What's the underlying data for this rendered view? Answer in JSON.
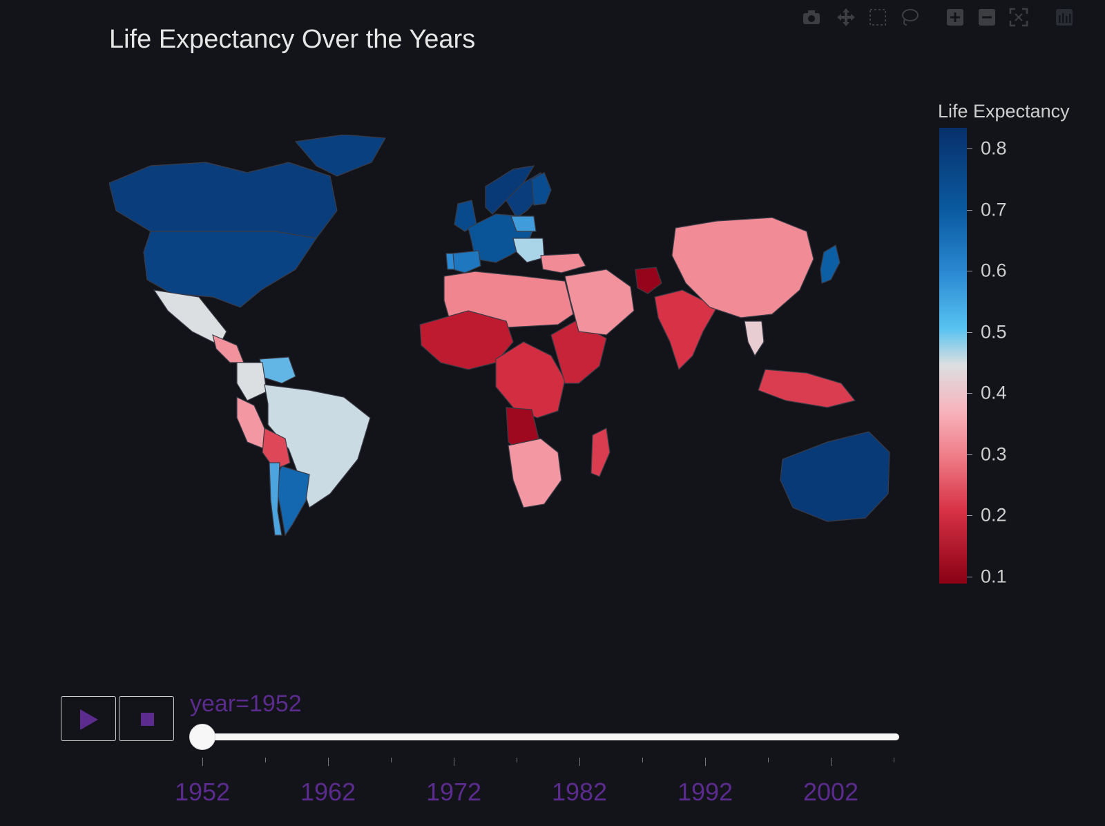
{
  "title": "Life Expectancy Over the Years",
  "modebar": {
    "icons": [
      "camera-icon",
      "pan-icon",
      "box-select-icon",
      "lasso-icon",
      "zoom-in-icon",
      "zoom-out-icon",
      "autoscale-icon",
      "plotly-logo-icon"
    ]
  },
  "colorbar": {
    "title": "Life Expectancy",
    "ticks": [
      "0.8",
      "0.7",
      "0.6",
      "0.5",
      "0.4",
      "0.3",
      "0.2",
      "0.1"
    ]
  },
  "slider": {
    "current_value": "year=1952",
    "labels": [
      "1952",
      "1962",
      "1972",
      "1982",
      "1992",
      "2002"
    ],
    "selected_year": 1952
  },
  "colors": {
    "background": "#13141a",
    "accent": "#5b2b8e",
    "land_default": "#13141a",
    "border": "#3a3b46",
    "no_data_border": "#4a2a72"
  },
  "chart_data": {
    "type": "choropleth",
    "title": "Life Expectancy Over the Years",
    "colorbar_title": "Life Expectancy",
    "year": 1952,
    "range": [
      0.1,
      0.83
    ],
    "regions": [
      {
        "name": "Canada",
        "value": 0.79
      },
      {
        "name": "United States",
        "value": 0.77
      },
      {
        "name": "Greenland",
        "value": 0.78
      },
      {
        "name": "Mexico",
        "value": 0.47
      },
      {
        "name": "Central America",
        "value": 0.35
      },
      {
        "name": "Venezuela",
        "value": 0.55
      },
      {
        "name": "Colombia",
        "value": 0.47
      },
      {
        "name": "Brazil",
        "value": 0.48
      },
      {
        "name": "Peru",
        "value": 0.36
      },
      {
        "name": "Bolivia",
        "value": 0.27
      },
      {
        "name": "Argentina",
        "value": 0.67
      },
      {
        "name": "Chile",
        "value": 0.57
      },
      {
        "name": "Norway",
        "value": 0.8
      },
      {
        "name": "Sweden",
        "value": 0.79
      },
      {
        "name": "Finland",
        "value": 0.74
      },
      {
        "name": "United Kingdom",
        "value": 0.75
      },
      {
        "name": "Western Europe",
        "value": 0.72
      },
      {
        "name": "Spain",
        "value": 0.64
      },
      {
        "name": "Portugal",
        "value": 0.6
      },
      {
        "name": "Poland",
        "value": 0.58
      },
      {
        "name": "Balkans",
        "value": 0.5
      },
      {
        "name": "Turkey",
        "value": 0.34
      },
      {
        "name": "North Africa",
        "value": 0.33
      },
      {
        "name": "West Africa",
        "value": 0.2
      },
      {
        "name": "Central Africa",
        "value": 0.24
      },
      {
        "name": "Angola",
        "value": 0.14
      },
      {
        "name": "East Africa",
        "value": 0.22
      },
      {
        "name": "Southern Africa",
        "value": 0.36
      },
      {
        "name": "Madagascar",
        "value": 0.26
      },
      {
        "name": "Middle East",
        "value": 0.35
      },
      {
        "name": "Afghanistan",
        "value": 0.12
      },
      {
        "name": "India",
        "value": 0.25
      },
      {
        "name": "China",
        "value": 0.34
      },
      {
        "name": "Thailand",
        "value": 0.44
      },
      {
        "name": "Indonesia",
        "value": 0.26
      },
      {
        "name": "Japan",
        "value": 0.69
      },
      {
        "name": "Australia",
        "value": 0.8
      }
    ]
  }
}
